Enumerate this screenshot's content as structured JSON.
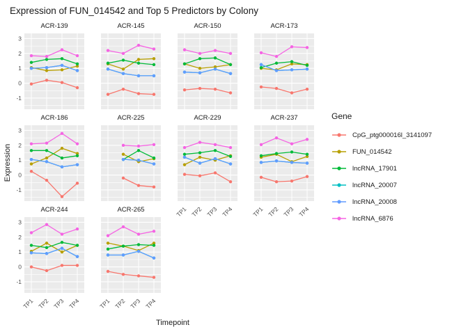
{
  "title": "Expression of FUN_014542 and Top 5 Predictors by Colony",
  "axes": {
    "x_title": "Timepoint",
    "y_title": "Expression"
  },
  "legend": {
    "title": "Gene",
    "items": [
      {
        "label": "CpG_ptg000016l_3141097",
        "color": "#F8766D"
      },
      {
        "label": "FUN_014542",
        "color": "#B79F00"
      },
      {
        "label": "lncRNA_17901",
        "color": "#00BA38"
      },
      {
        "label": "lncRNA_20007",
        "color": "#00BFC4"
      },
      {
        "label": "lncRNA_20008",
        "color": "#619CFF"
      },
      {
        "label": "lncRNA_6876",
        "color": "#F564E3"
      }
    ]
  },
  "chart_data": {
    "type": "line",
    "title": "Expression of FUN_014542 and Top 5 Predictors by Colony",
    "xlabel": "Timepoint",
    "ylabel": "Expression",
    "x": [
      "TP1",
      "TP2",
      "TP3",
      "TP4"
    ],
    "y_ticks": [
      3,
      2,
      1,
      0,
      -1
    ],
    "ylim": [
      -1.75,
      3.35
    ],
    "grid": true,
    "legend_position": "right",
    "panel_color": "#EBEBEB",
    "grid_color": "#FFFFFF",
    "tick_label_color": "#4D4D4D",
    "series_defs": [
      {
        "key": "CpG_ptg000016l_3141097",
        "color": "#F8766D"
      },
      {
        "key": "FUN_014542",
        "color": "#B79F00"
      },
      {
        "key": "lncRNA_17901",
        "color": "#00BA38"
      },
      {
        "key": "lncRNA_20007",
        "color": "#00BFC4"
      },
      {
        "key": "lncRNA_20008",
        "color": "#619CFF"
      },
      {
        "key": "lncRNA_6876",
        "color": "#F564E3"
      }
    ],
    "facets": [
      {
        "name": "ACR-139",
        "values": {
          "CpG_ptg000016l_3141097": [
            -0.05,
            0.2,
            0.05,
            -0.3
          ],
          "FUN_014542": [
            1.05,
            0.85,
            0.9,
            1.15
          ],
          "lncRNA_17901": [
            1.4,
            1.6,
            1.65,
            1.3
          ],
          "lncRNA_20007": [
            1.0,
            1.05,
            1.2,
            0.85
          ],
          "lncRNA_20008": [
            1.0,
            1.05,
            1.2,
            0.85
          ],
          "lncRNA_6876": [
            1.85,
            1.8,
            2.25,
            1.85
          ]
        }
      },
      {
        "name": "ACR-145",
        "values": {
          "CpG_ptg000016l_3141097": [
            -0.75,
            -0.4,
            -0.7,
            -0.75
          ],
          "FUN_014542": [
            1.3,
            0.95,
            1.6,
            1.65
          ],
          "lncRNA_17901": [
            1.35,
            1.55,
            1.35,
            1.25
          ],
          "lncRNA_20007": [
            0.95,
            0.65,
            0.5,
            0.5
          ],
          "lncRNA_20008": [
            0.95,
            0.65,
            0.5,
            0.5
          ],
          "lncRNA_6876": [
            2.2,
            2.0,
            2.55,
            2.3
          ]
        }
      },
      {
        "name": "ACR-150",
        "values": {
          "CpG_ptg000016l_3141097": [
            -0.45,
            -0.35,
            -0.4,
            -0.65
          ],
          "FUN_014542": [
            1.3,
            1.0,
            1.1,
            1.25
          ],
          "lncRNA_17901": [
            1.3,
            1.65,
            1.7,
            1.25
          ],
          "lncRNA_20007": [
            0.75,
            0.7,
            0.95,
            0.65
          ],
          "lncRNA_20008": [
            0.75,
            0.7,
            0.95,
            0.65
          ],
          "lncRNA_6876": [
            2.25,
            2.0,
            2.2,
            2.0
          ]
        }
      },
      {
        "name": "ACR-173",
        "values": {
          "CpG_ptg000016l_3141097": [
            -0.25,
            -0.35,
            -0.65,
            -0.4
          ],
          "FUN_014542": [
            1.0,
            0.9,
            1.3,
            1.25
          ],
          "lncRNA_17901": [
            1.05,
            1.35,
            1.45,
            1.2
          ],
          "lncRNA_20007": [
            1.25,
            0.85,
            0.9,
            0.95
          ],
          "lncRNA_20008": [
            1.25,
            0.85,
            0.9,
            0.95
          ],
          "lncRNA_6876": [
            2.05,
            1.8,
            2.45,
            2.4
          ]
        }
      },
      {
        "name": "ACR-186",
        "values": {
          "CpG_ptg000016l_3141097": [
            0.25,
            -0.35,
            -1.45,
            -0.55
          ],
          "FUN_014542": [
            0.75,
            1.15,
            1.8,
            1.45
          ],
          "lncRNA_17901": [
            1.65,
            1.65,
            1.15,
            1.3
          ],
          "lncRNA_20007": [
            1.05,
            0.9,
            0.55,
            0.7
          ],
          "lncRNA_20008": [
            1.05,
            0.9,
            0.55,
            0.7
          ],
          "lncRNA_6876": [
            2.1,
            2.15,
            2.8,
            2.1
          ]
        }
      },
      {
        "name": "ACR-225",
        "values": {
          "CpG_ptg000016l_3141097": [
            null,
            -0.2,
            -0.7,
            -0.8
          ],
          "FUN_014542": [
            null,
            1.4,
            0.9,
            1.1
          ],
          "lncRNA_17901": [
            null,
            1.05,
            1.65,
            1.15
          ],
          "lncRNA_20007": [
            null,
            1.05,
            1.0,
            0.75
          ],
          "lncRNA_20008": [
            null,
            1.05,
            1.0,
            0.75
          ],
          "lncRNA_6876": [
            null,
            2.0,
            1.95,
            2.05
          ]
        }
      },
      {
        "name": "ACR-229",
        "values": {
          "CpG_ptg000016l_3141097": [
            0.05,
            -0.05,
            0.15,
            -0.45
          ],
          "FUN_014542": [
            0.7,
            1.2,
            1.0,
            1.3
          ],
          "lncRNA_17901": [
            1.4,
            1.5,
            1.65,
            1.25
          ],
          "lncRNA_20007": [
            1.2,
            0.8,
            1.1,
            0.75
          ],
          "lncRNA_20008": [
            1.2,
            0.8,
            1.1,
            0.75
          ],
          "lncRNA_6876": [
            1.85,
            2.2,
            2.05,
            1.85
          ]
        }
      },
      {
        "name": "ACR-237",
        "values": {
          "CpG_ptg000016l_3141097": [
            -0.15,
            -0.45,
            -0.4,
            -0.1
          ],
          "FUN_014542": [
            1.2,
            1.4,
            0.9,
            1.25
          ],
          "lncRNA_17901": [
            1.3,
            1.45,
            1.55,
            1.4
          ],
          "lncRNA_20007": [
            0.85,
            0.95,
            0.85,
            0.8
          ],
          "lncRNA_20008": [
            0.85,
            0.95,
            0.85,
            0.8
          ],
          "lncRNA_6876": [
            2.05,
            2.5,
            2.1,
            2.4
          ]
        }
      },
      {
        "name": "ACR-244",
        "values": {
          "CpG_ptg000016l_3141097": [
            0.0,
            -0.25,
            0.1,
            0.1
          ],
          "FUN_014542": [
            1.05,
            1.6,
            1.0,
            1.45
          ],
          "lncRNA_17901": [
            1.45,
            1.3,
            1.65,
            1.45
          ],
          "lncRNA_20007": [
            0.95,
            0.9,
            1.25,
            0.7
          ],
          "lncRNA_20008": [
            0.95,
            0.9,
            1.25,
            0.7
          ],
          "lncRNA_6876": [
            2.3,
            2.85,
            2.2,
            2.55
          ]
        }
      },
      {
        "name": "ACR-265",
        "values": {
          "CpG_ptg000016l_3141097": [
            -0.3,
            -0.5,
            -0.6,
            -0.7
          ],
          "FUN_014542": [
            1.6,
            1.4,
            1.1,
            1.6
          ],
          "lncRNA_17901": [
            1.2,
            1.4,
            1.5,
            1.45
          ],
          "lncRNA_20007": [
            0.8,
            0.8,
            1.05,
            0.6
          ],
          "lncRNA_20008": [
            0.8,
            0.8,
            1.05,
            0.6
          ],
          "lncRNA_6876": [
            2.1,
            2.7,
            2.2,
            2.4
          ]
        }
      }
    ]
  }
}
